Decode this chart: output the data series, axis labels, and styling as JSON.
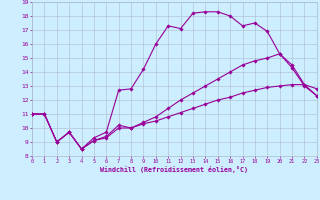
{
  "bg_color": "#cceeff",
  "grid_color": "#aabbcc",
  "line_color": "#990099",
  "xlabel": "Windchill (Refroidissement éolien,°C)",
  "xlim": [
    0,
    23
  ],
  "ylim": [
    8,
    19
  ],
  "xtick_vals": [
    0,
    1,
    2,
    3,
    4,
    5,
    6,
    7,
    8,
    9,
    10,
    11,
    12,
    13,
    14,
    15,
    16,
    17,
    18,
    19,
    20,
    21,
    22,
    23
  ],
  "ytick_vals": [
    8,
    9,
    10,
    11,
    12,
    13,
    14,
    15,
    16,
    17,
    18,
    19
  ],
  "line1_x": [
    0,
    1,
    2,
    3,
    4,
    5,
    6,
    7,
    8,
    9,
    10,
    11,
    12,
    13,
    14,
    15,
    16,
    17,
    18,
    19,
    20,
    21,
    22,
    23
  ],
  "line1_y": [
    11,
    11,
    9,
    9.7,
    8.5,
    9.3,
    9.7,
    12.7,
    12.8,
    14.2,
    16.0,
    17.3,
    17.1,
    18.2,
    18.3,
    18.3,
    18.0,
    17.3,
    17.5,
    16.9,
    15.3,
    14.3,
    13.0,
    12.3
  ],
  "line2_x": [
    0,
    1,
    2,
    3,
    4,
    5,
    6,
    7,
    8,
    9,
    10,
    11,
    12,
    13,
    14,
    15,
    16,
    17,
    18,
    19,
    20,
    21,
    22,
    23
  ],
  "line2_y": [
    11,
    11,
    9,
    9.7,
    8.5,
    9.1,
    9.4,
    10.2,
    10.0,
    10.4,
    10.8,
    11.4,
    12.0,
    12.5,
    13.0,
    13.5,
    14.0,
    14.5,
    14.8,
    15.0,
    15.3,
    14.5,
    13.1,
    12.8
  ],
  "line3_x": [
    0,
    1,
    2,
    3,
    4,
    5,
    6,
    7,
    8,
    9,
    10,
    11,
    12,
    13,
    14,
    15,
    16,
    17,
    18,
    19,
    20,
    21,
    22,
    23
  ],
  "line3_y": [
    11,
    11,
    9,
    9.7,
    8.5,
    9.1,
    9.3,
    10.0,
    10.0,
    10.3,
    10.5,
    10.8,
    11.1,
    11.4,
    11.7,
    12.0,
    12.2,
    12.5,
    12.7,
    12.9,
    13.0,
    13.1,
    13.1,
    12.3
  ]
}
